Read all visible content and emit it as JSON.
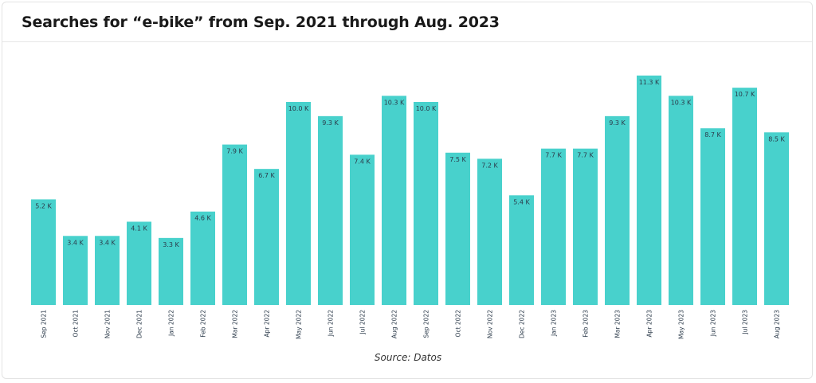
{
  "header": {
    "title": "Searches for “e-bike” from Sep. 2021 through Aug. 2023"
  },
  "source": "Source: Datos",
  "colors": {
    "bar": "#48d1cc",
    "text": "#2b3a4a"
  },
  "chart_data": {
    "type": "bar",
    "title": "Searches for “e-bike” from Sep. 2021 through Aug. 2023",
    "xlabel": "",
    "ylabel": "",
    "grid": false,
    "categories": [
      "Sep 2021",
      "Oct 2021",
      "Nov 2021",
      "Dec 2021",
      "Jan 2022",
      "Feb 2022",
      "Mar 2022",
      "Apr 2022",
      "May 2022",
      "Jun 2022",
      "Jul 2022",
      "Aug 2022",
      "Sep 2022",
      "Oct 2022",
      "Nov 2022",
      "Dec 2022",
      "Jan 2023",
      "Feb 2023",
      "Mar 2023",
      "Apr 2023",
      "May 2023",
      "Jun 2023",
      "Jul 2023",
      "Aug 2023"
    ],
    "values": [
      5.2,
      3.4,
      3.4,
      4.1,
      3.3,
      4.6,
      7.9,
      6.7,
      10.0,
      9.3,
      7.4,
      10.3,
      10.0,
      7.5,
      7.2,
      5.4,
      7.7,
      7.7,
      9.3,
      11.3,
      10.3,
      8.7,
      10.7,
      8.5
    ],
    "value_labels": [
      "5.2 K",
      "3.4 K",
      "3.4 K",
      "4.1 K",
      "3.3 K",
      "4.6 K",
      "7.9 K",
      "6.7 K",
      "10.0 K",
      "9.3 K",
      "7.4 K",
      "10.3 K",
      "10.0 K",
      "7.5 K",
      "7.2 K",
      "5.4 K",
      "7.7 K",
      "7.7 K",
      "9.3 K",
      "11.3 K",
      "10.3 K",
      "8.7 K",
      "10.7 K",
      "8.5 K"
    ],
    "unit": "K",
    "ylim": [
      0,
      11.3
    ]
  }
}
